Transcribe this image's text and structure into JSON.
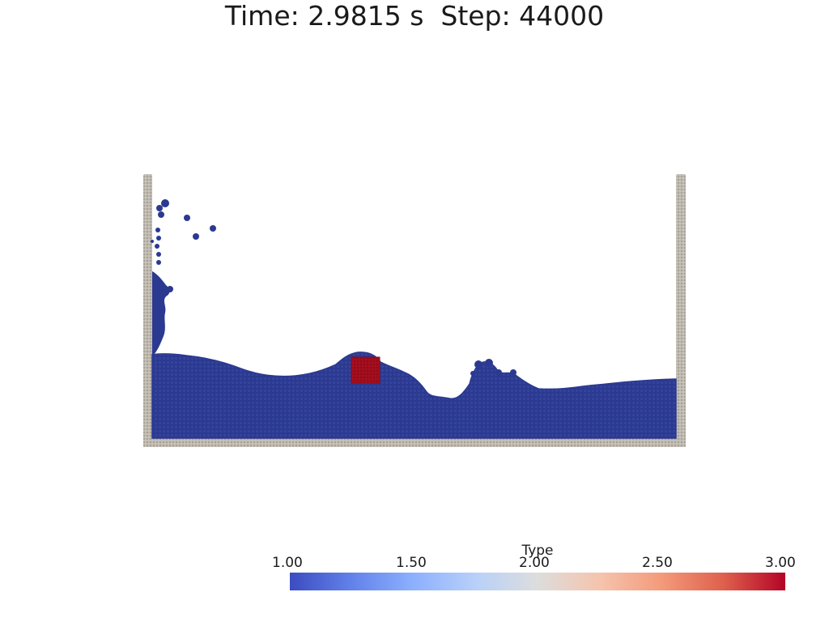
{
  "header": {
    "title": "Time: 2.9815 s  Step: 44000"
  },
  "scene": {
    "particle_colors": {
      "fluid": "#2b3990",
      "body": "#a50e1e",
      "wall": "#b8b2a8"
    }
  },
  "colorbar": {
    "title": "Type",
    "ticks": [
      "1.00",
      "1.50",
      "2.00",
      "2.50",
      "3.00"
    ],
    "range": [
      1.0,
      3.0
    ],
    "colormap": "cool-to-warm",
    "gradient_colors": [
      "#3b4cc0",
      "#dddddd",
      "#b40426"
    ]
  }
}
